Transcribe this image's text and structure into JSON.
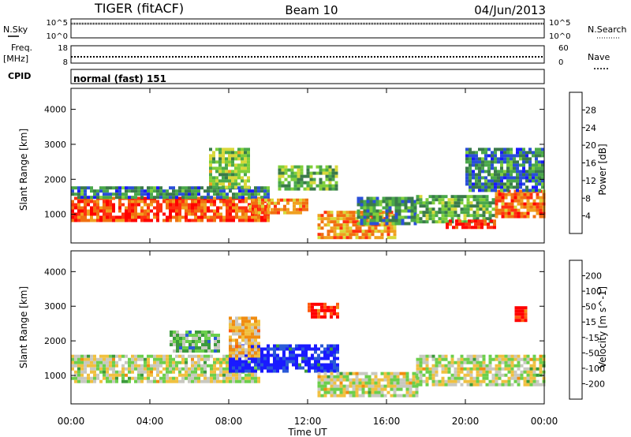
{
  "header": {
    "radar": "TIGER (fitACF)",
    "beam": "Beam 10",
    "date": "04/Jun/2013"
  },
  "top_panels": {
    "nsky_label": "N.Sky",
    "nsearch_label": "N.Search",
    "nsky_ticks": [
      "10^5",
      "10^0"
    ],
    "nsearch_ticks": [
      "10^5",
      "10^0"
    ],
    "freq_label": "Freq.",
    "freq_unit": "[MHz]",
    "freq_ticks": [
      "18",
      "8"
    ],
    "nave_label": "Nave",
    "nave_ticks": [
      "60",
      "0"
    ],
    "cpid_label": "CPID",
    "cpid_text": "normal (fast) 151"
  },
  "colors": {
    "power_scale": [
      "#1a1aff",
      "#2a4fd8",
      "#3a7a4a",
      "#4aa84a",
      "#7fcf3a",
      "#d8d83a",
      "#f0a020",
      "#f07010",
      "#ff3010",
      "#ff0000"
    ],
    "velocity_scale": [
      "#1a1aff",
      "#2a5ad8",
      "#3c9a3c",
      "#6ccf4c",
      "#c8c8c0",
      "#f0c040",
      "#f08c10",
      "#ff5a10",
      "#ff0000"
    ]
  },
  "chart_data": [
    {
      "type": "heatmap",
      "panel": "power",
      "xlabel": "",
      "ylabel": "Slant Range [km]",
      "ylim": [
        180,
        4600
      ],
      "yticks": [
        "1000",
        "2000",
        "3000",
        "4000"
      ],
      "colorbar_label": "Power [dB]",
      "colorbar_ticks": [
        "4",
        "8",
        "12",
        "16",
        "20",
        "24",
        "28"
      ],
      "regions": [
        {
          "t0": 0.0,
          "t1": 10.0,
          "r0": 800,
          "r1": 1500,
          "value": 26
        },
        {
          "t0": 0.0,
          "t1": 10.0,
          "r0": 1500,
          "r1": 1800,
          "value": 8
        },
        {
          "t0": 7.0,
          "t1": 9.0,
          "r0": 1800,
          "r1": 2900,
          "value": 14
        },
        {
          "t0": 9.0,
          "t1": 12.0,
          "r0": 1050,
          "r1": 1450,
          "value": 22
        },
        {
          "t0": 10.5,
          "t1": 13.5,
          "r0": 1700,
          "r1": 2400,
          "value": 12
        },
        {
          "t0": 12.5,
          "t1": 16.5,
          "r0": 300,
          "r1": 1100,
          "value": 22
        },
        {
          "t0": 14.5,
          "t1": 17.5,
          "r0": 700,
          "r1": 1500,
          "value": 10
        },
        {
          "t0": 17.5,
          "t1": 21.5,
          "r0": 800,
          "r1": 1550,
          "value": 12
        },
        {
          "t0": 19.0,
          "t1": 21.5,
          "r0": 600,
          "r1": 850,
          "value": 28
        },
        {
          "t0": 21.5,
          "t1": 24.0,
          "r0": 900,
          "r1": 1700,
          "value": 24
        },
        {
          "t0": 20.0,
          "t1": 24.0,
          "r0": 1700,
          "r1": 2900,
          "value": 8
        }
      ]
    },
    {
      "type": "heatmap",
      "panel": "velocity",
      "xlabel": "Time UT",
      "ylabel": "Slant Range [km]",
      "ylim": [
        180,
        4600
      ],
      "yticks": [
        "1000",
        "2000",
        "3000",
        "4000"
      ],
      "xticks": [
        "00:00",
        "04:00",
        "08:00",
        "12:00",
        "16:00",
        "20:00",
        "00:00"
      ],
      "colorbar_label": "Velocity [m s^-1]",
      "colorbar_ticks": [
        "200",
        "100",
        "50",
        "15",
        "-15",
        "-50",
        "-100",
        "-200"
      ],
      "regions": [
        {
          "t0": 0.0,
          "t1": 9.5,
          "r0": 800,
          "r1": 1600,
          "value": 0
        },
        {
          "t0": 8.0,
          "t1": 13.5,
          "r0": 1100,
          "r1": 1900,
          "value": 220
        },
        {
          "t0": 8.0,
          "t1": 9.5,
          "r0": 1600,
          "r1": 2700,
          "value": -60
        },
        {
          "t0": 12.5,
          "t1": 17.5,
          "r0": 400,
          "r1": 1100,
          "value": 0
        },
        {
          "t0": 17.5,
          "t1": 24.0,
          "r0": 700,
          "r1": 1600,
          "value": 0
        },
        {
          "t0": 22.5,
          "t1": 23.0,
          "r0": 2600,
          "r1": 3000,
          "value": -220
        },
        {
          "t0": 12.0,
          "t1": 13.5,
          "r0": 2700,
          "r1": 3100,
          "value": -220
        },
        {
          "t0": 5.0,
          "t1": 7.5,
          "r0": 1700,
          "r1": 2300,
          "value": 60
        }
      ]
    }
  ],
  "time_axis": {
    "xlabel": "Time UT",
    "ticks": [
      "00:00",
      "04:00",
      "08:00",
      "12:00",
      "16:00",
      "20:00",
      "00:00"
    ]
  }
}
